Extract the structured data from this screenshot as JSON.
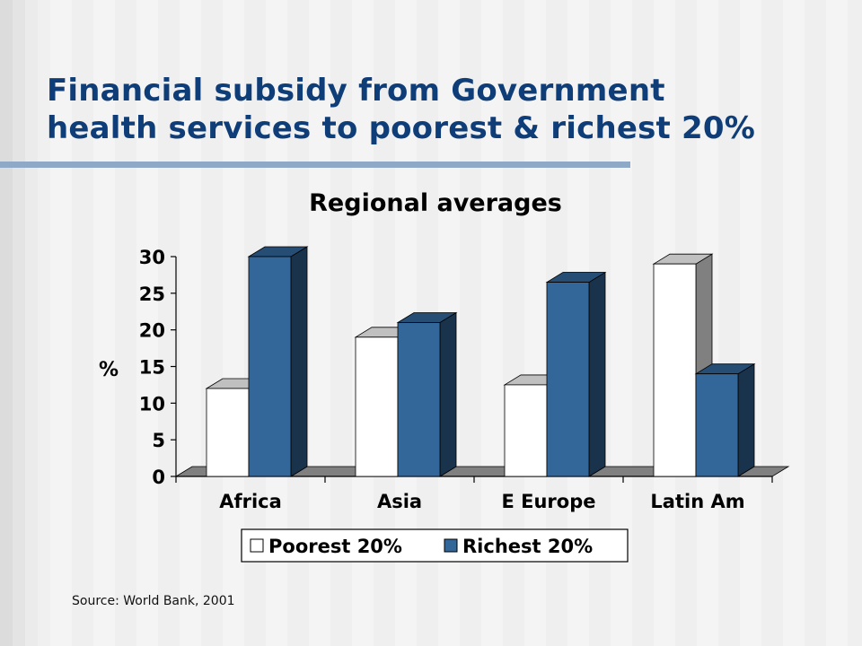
{
  "slide": {
    "title_line1": "Financial subsidy from Government",
    "title_line2": "health services to poorest & richest 20%",
    "source": "Source: World Bank, 2001",
    "title_color": "#0f3d78",
    "rule_color": "#8ea8c8"
  },
  "chart_data": {
    "type": "bar",
    "title": "Regional averages",
    "ylabel": "%",
    "xlabel": "",
    "ylim": [
      0,
      30
    ],
    "yticks": [
      0,
      5,
      10,
      15,
      20,
      25,
      30
    ],
    "categories": [
      "Africa",
      "Asia",
      "E Europe",
      "Latin Am"
    ],
    "series": [
      {
        "name": "Poorest 20%",
        "values": [
          12,
          19,
          12.5,
          29
        ],
        "color": "#ffffff"
      },
      {
        "name": "Richest 20%",
        "values": [
          30,
          21,
          26.5,
          14
        ],
        "color": "#336699"
      }
    ],
    "legend_position": "bottom",
    "grid": false,
    "three_d": true
  }
}
